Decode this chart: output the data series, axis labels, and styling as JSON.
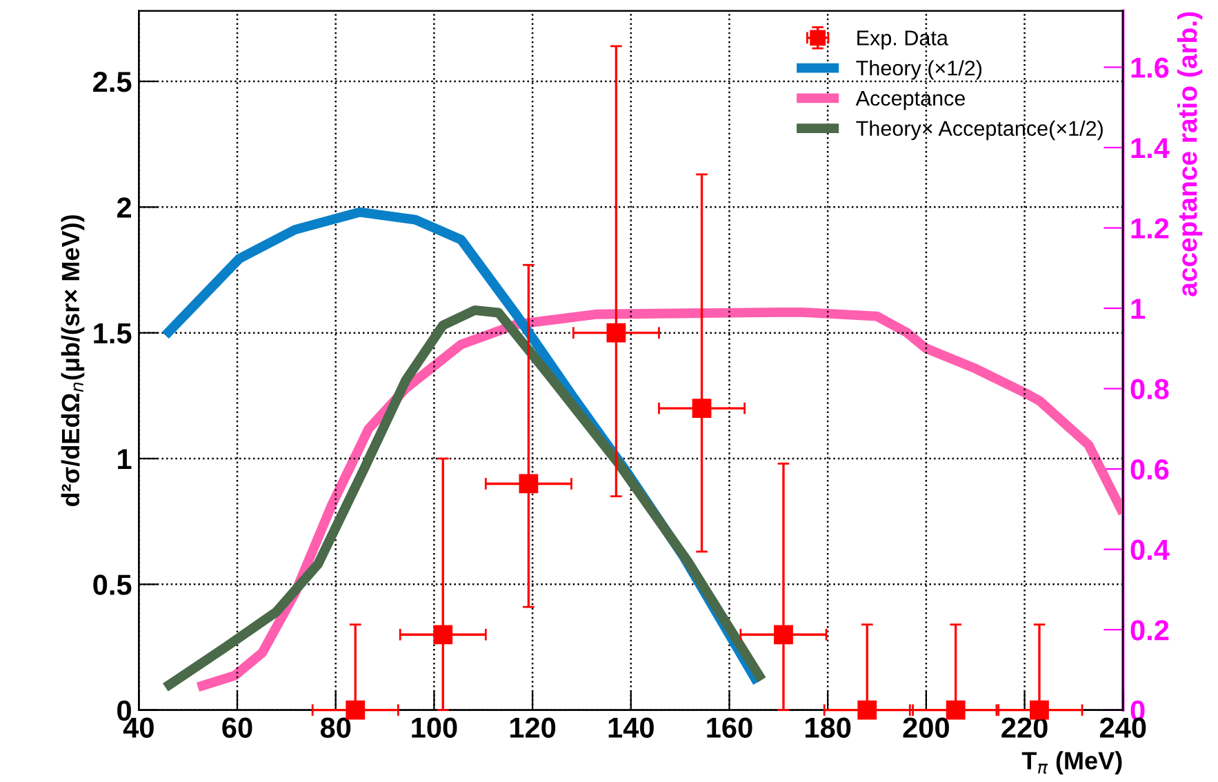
{
  "chart_data": {
    "type": "line",
    "xlabel": "T$_{π}$ (MeV)",
    "ylabel": "d²σ/dEdΩ$_{n}$(μb/(sr× MeV))",
    "y2label": "acceptance ratio (arb.)",
    "xlim": [
      40,
      240
    ],
    "xticks": [
      40,
      60,
      80,
      100,
      120,
      140,
      160,
      180,
      200,
      220,
      240
    ],
    "ylim": [
      0,
      2.78
    ],
    "yticks": [
      0,
      0.5,
      1,
      1.5,
      2,
      2.5
    ],
    "y2lim": [
      0,
      1.74
    ],
    "y2ticks": [
      0,
      0.2,
      0.4,
      0.6,
      0.8,
      1,
      1.2,
      1.4,
      1.6
    ],
    "grid": true,
    "legend": "top right",
    "series": [
      {
        "name": "Exp. Data",
        "type": "scatter",
        "color": "#ff0000",
        "marker": "square",
        "x": [
          84,
          101.8,
          119.2,
          137,
          154.4,
          171,
          188,
          206,
          223
        ],
        "values": [
          0,
          0.3,
          0.9,
          1.5,
          1.2,
          0.3,
          0,
          0,
          0
        ],
        "errors": [
          [
            0,
            0.34
          ],
          [
            0,
            1.0
          ],
          [
            0.41,
            1.77
          ],
          [
            0.85,
            2.64
          ],
          [
            0.63,
            2.13
          ],
          [
            0,
            0.98
          ],
          [
            0,
            0.34
          ],
          [
            0,
            0.34
          ],
          [
            0,
            0.34
          ]
        ],
        "xerrors": [
          8.7,
          8.7,
          8.7,
          8.7,
          8.7,
          8.7,
          8.7,
          8.7,
          8.7
        ]
      },
      {
        "name": "Theory (×1/2)",
        "color": "#0a80c8",
        "x": [
          45.4,
          60.4,
          71.7,
          84.9,
          96.2,
          105.5,
          116.8,
          128.1,
          139.4,
          150.7,
          165.7
        ],
        "values": [
          1.49,
          1.795,
          1.91,
          1.98,
          1.95,
          1.87,
          1.57,
          1.25,
          0.94,
          0.61,
          0.11
        ]
      },
      {
        "name": "Acceptance",
        "axis": "y2",
        "color": "#ff5fae",
        "x": [
          52,
          59.5,
          65.1,
          71.7,
          79.2,
          86.7,
          94.2,
          105.5,
          116.8,
          132.8,
          169.5,
          175,
          190,
          196,
          200,
          210,
          220,
          223,
          233,
          240
        ],
        "values": [
          0.057,
          0.086,
          0.143,
          0.29,
          0.51,
          0.7,
          0.8,
          0.91,
          0.96,
          0.985,
          0.99,
          0.99,
          0.98,
          0.94,
          0.9,
          0.85,
          0.79,
          0.77,
          0.66,
          0.49
        ]
      },
      {
        "name": "Theory× Acceptance(×1/2)",
        "color": "#4a6a4a",
        "x": [
          45.4,
          57.6,
          67.9,
          76.4,
          85.8,
          94.2,
          101.8,
          108.3,
          113.1,
          123.4,
          137.5,
          151.6,
          166.6
        ],
        "values": [
          0.09,
          0.25,
          0.39,
          0.58,
          0.96,
          1.31,
          1.53,
          1.59,
          1.58,
          1.33,
          0.98,
          0.59,
          0.12
        ]
      }
    ]
  }
}
